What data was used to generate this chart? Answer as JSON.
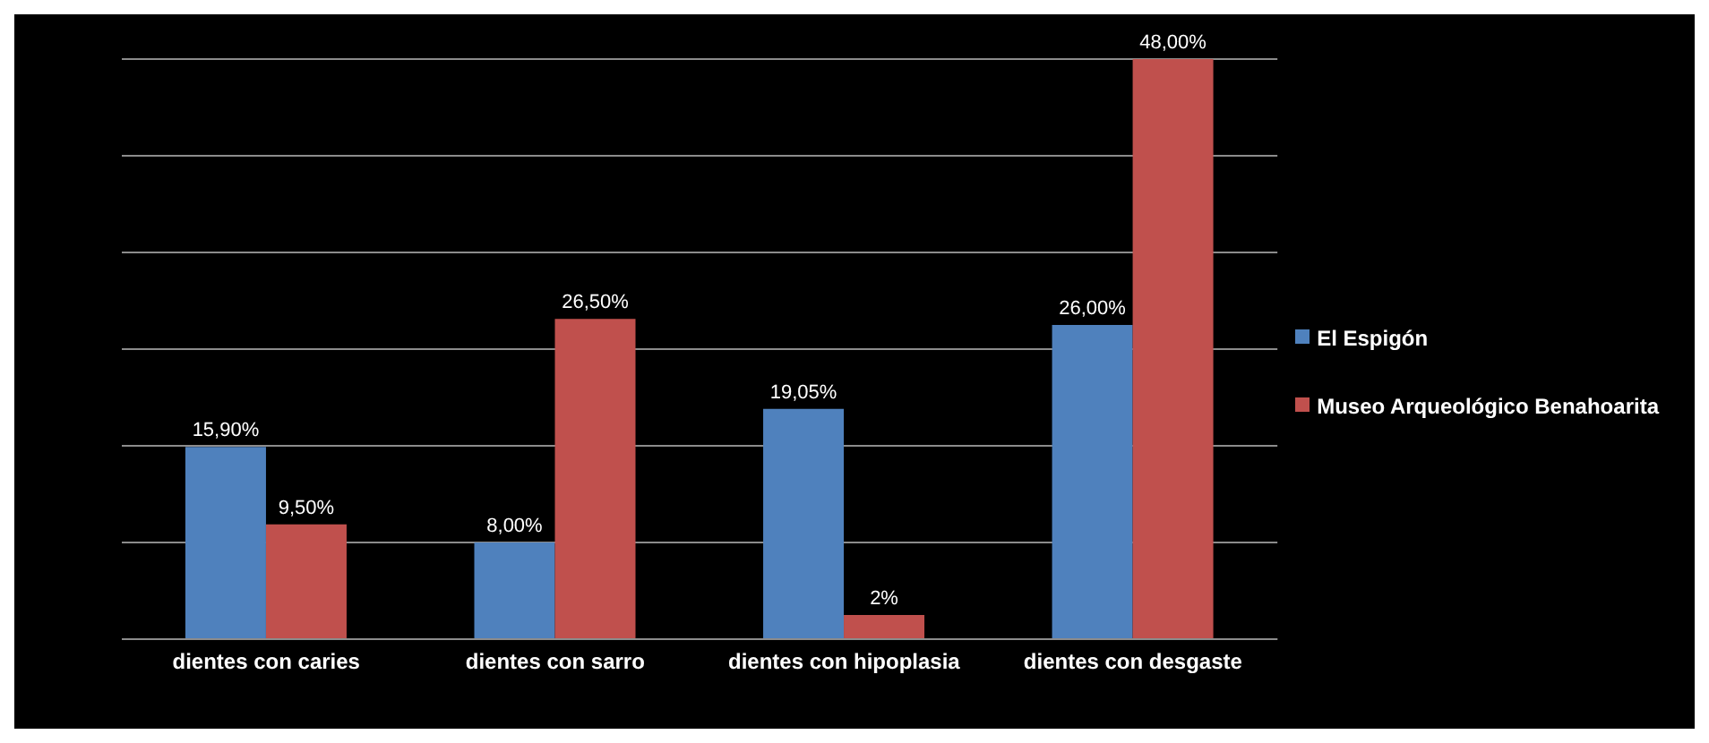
{
  "chart_data": {
    "type": "bar",
    "categories": [
      "dientes con caries",
      "dientes con sarro",
      "dientes con hipoplasia",
      "dientes con desgaste"
    ],
    "series": [
      {
        "name": "El Espigón",
        "color": "#4f81bd",
        "values": [
          15.9,
          8,
          19.05,
          26
        ],
        "value_labels": [
          "15,90%",
          "8,00%",
          "19,05%",
          "26,00%"
        ]
      },
      {
        "name": "Museo Arqueológico Benahoarita",
        "color": "#c0504d",
        "values": [
          9.5,
          26.5,
          2,
          48
        ],
        "value_labels": [
          "9,50%",
          "26,50%",
          "2%",
          "48,00%"
        ]
      }
    ],
    "tick_labels": "x",
    "grid": "y",
    "legend": "right"
  }
}
